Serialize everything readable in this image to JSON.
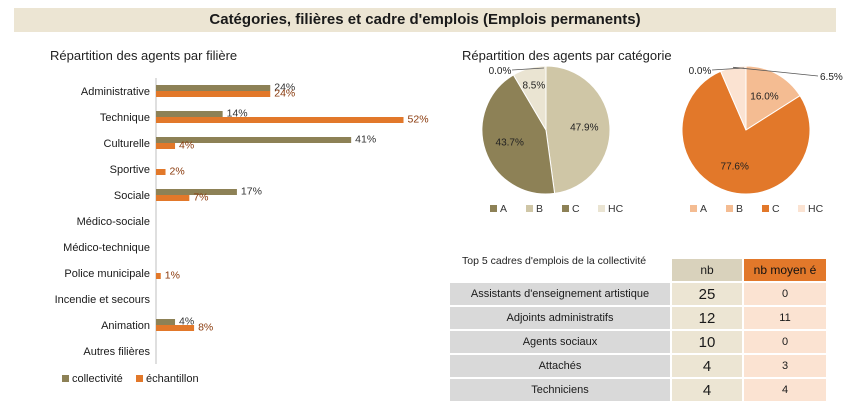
{
  "header": {
    "title": "Catégories, filières et cadre d'emplois (Emplois permanents)"
  },
  "colors": {
    "collectivite": "#8d8156",
    "echantillon": "#e2782a"
  },
  "bar_section": {
    "title": "Répartition des agents par filière"
  },
  "pie_section": {
    "title": "Répartition des agents par catégorie"
  },
  "chart_data": [
    {
      "type": "bar",
      "orientation": "horizontal",
      "title": "Répartition des agents par filière",
      "categories": [
        "Administrative",
        "Technique",
        "Culturelle",
        "Sportive",
        "Sociale",
        "Médico-sociale",
        "Médico-technique",
        "Police municipale",
        "Incendie et secours",
        "Animation",
        "Autres filières"
      ],
      "series": [
        {
          "name": "collectivité",
          "values": [
            24,
            14,
            41,
            0,
            17,
            0,
            0,
            0,
            0,
            4,
            0
          ],
          "labels": [
            "24%",
            "14%",
            "41%",
            "",
            "17%",
            "",
            "",
            "",
            "",
            "4%",
            ""
          ]
        },
        {
          "name": "échantillon",
          "values": [
            24,
            52,
            4,
            2,
            7,
            0,
            0,
            1,
            0,
            8,
            0
          ],
          "labels": [
            "24%",
            "52%",
            "4%",
            "2%",
            "7%",
            "",
            "",
            "1%",
            "",
            "8%",
            ""
          ]
        }
      ],
      "xlim": [
        0,
        55
      ],
      "legend": "bottom-left"
    },
    {
      "type": "pie",
      "categories": [
        "A",
        "B",
        "C",
        "HC"
      ],
      "values": [
        0.0,
        47.9,
        43.7,
        8.5
      ],
      "labels": [
        "0.0%",
        "47.9%",
        "43.7%",
        "8.5%"
      ],
      "colors": [
        "#8d8156",
        "#cfc6a6",
        "#8d8156",
        "#eae4d2"
      ],
      "legend": "bottom"
    },
    {
      "type": "pie",
      "categories": [
        "A",
        "B",
        "C",
        "HC"
      ],
      "values": [
        0.0,
        16.0,
        77.6,
        6.5
      ],
      "labels": [
        "0.0%",
        "16.0%",
        "77.6%",
        "6.5%"
      ],
      "colors": [
        "#f4bc92",
        "#f4bc92",
        "#e2782a",
        "#fbe3d2"
      ],
      "legend": "bottom"
    },
    {
      "type": "table",
      "title": "Top 5 cadres d'emplois de la collectivité",
      "columns": [
        "nb",
        "nb moyen é"
      ],
      "rows": [
        {
          "name": "Assistants d'enseignement artistique",
          "nb": "25",
          "moyen": "0"
        },
        {
          "name": "Adjoints administratifs",
          "nb": "12",
          "moyen": "11"
        },
        {
          "name": "Agents sociaux",
          "nb": "10",
          "moyen": "0"
        },
        {
          "name": "Attachés",
          "nb": "4",
          "moyen": "3"
        },
        {
          "name": "Techniciens",
          "nb": "4",
          "moyen": "4"
        }
      ]
    }
  ]
}
